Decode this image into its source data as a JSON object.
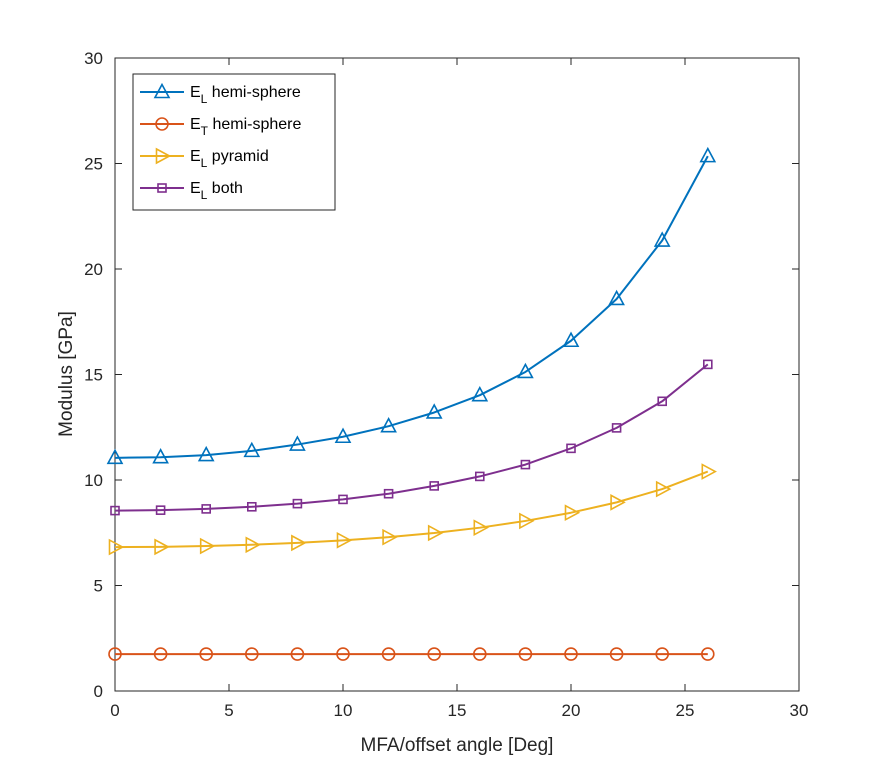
{
  "chart_data": {
    "type": "line",
    "xlabel": "MFA/offset angle [Deg]",
    "ylabel": "Modulus [GPa]",
    "xlim": [
      0,
      30
    ],
    "ylim": [
      0,
      30
    ],
    "xticks": [
      0,
      5,
      10,
      15,
      20,
      25,
      30
    ],
    "yticks": [
      0,
      5,
      10,
      15,
      20,
      25,
      30
    ],
    "grid": false,
    "legend_position": "top-left",
    "x": [
      0,
      2,
      4,
      6,
      8,
      10,
      12,
      14,
      16,
      18,
      20,
      22,
      24,
      26
    ],
    "series": [
      {
        "name_main": "E",
        "name_sub": "L",
        "name_rest": " hemi-sphere",
        "color": "#0072BD",
        "marker": "triangle-up",
        "values": [
          11.05,
          11.08,
          11.18,
          11.38,
          11.68,
          12.05,
          12.55,
          13.2,
          14.02,
          15.12,
          16.6,
          18.58,
          21.35,
          25.35
        ]
      },
      {
        "name_main": "E",
        "name_sub": "T",
        "name_rest": " hemi-sphere",
        "color": "#D95319",
        "marker": "circle",
        "values": [
          1.75,
          1.75,
          1.75,
          1.75,
          1.75,
          1.75,
          1.75,
          1.75,
          1.75,
          1.75,
          1.75,
          1.75,
          1.75,
          1.75
        ]
      },
      {
        "name_main": "E",
        "name_sub": "L",
        "name_rest": " pyramid",
        "color": "#EDB120",
        "marker": "triangle-right",
        "values": [
          6.82,
          6.83,
          6.87,
          6.93,
          7.02,
          7.14,
          7.29,
          7.49,
          7.74,
          8.06,
          8.45,
          8.94,
          9.57,
          10.4
        ]
      },
      {
        "name_main": "E",
        "name_sub": "L",
        "name_rest": " both",
        "color": "#7E2F8E",
        "marker": "square",
        "values": [
          8.55,
          8.57,
          8.63,
          8.73,
          8.88,
          9.08,
          9.35,
          9.72,
          10.17,
          10.73,
          11.5,
          12.47,
          13.73,
          15.48
        ]
      }
    ]
  }
}
